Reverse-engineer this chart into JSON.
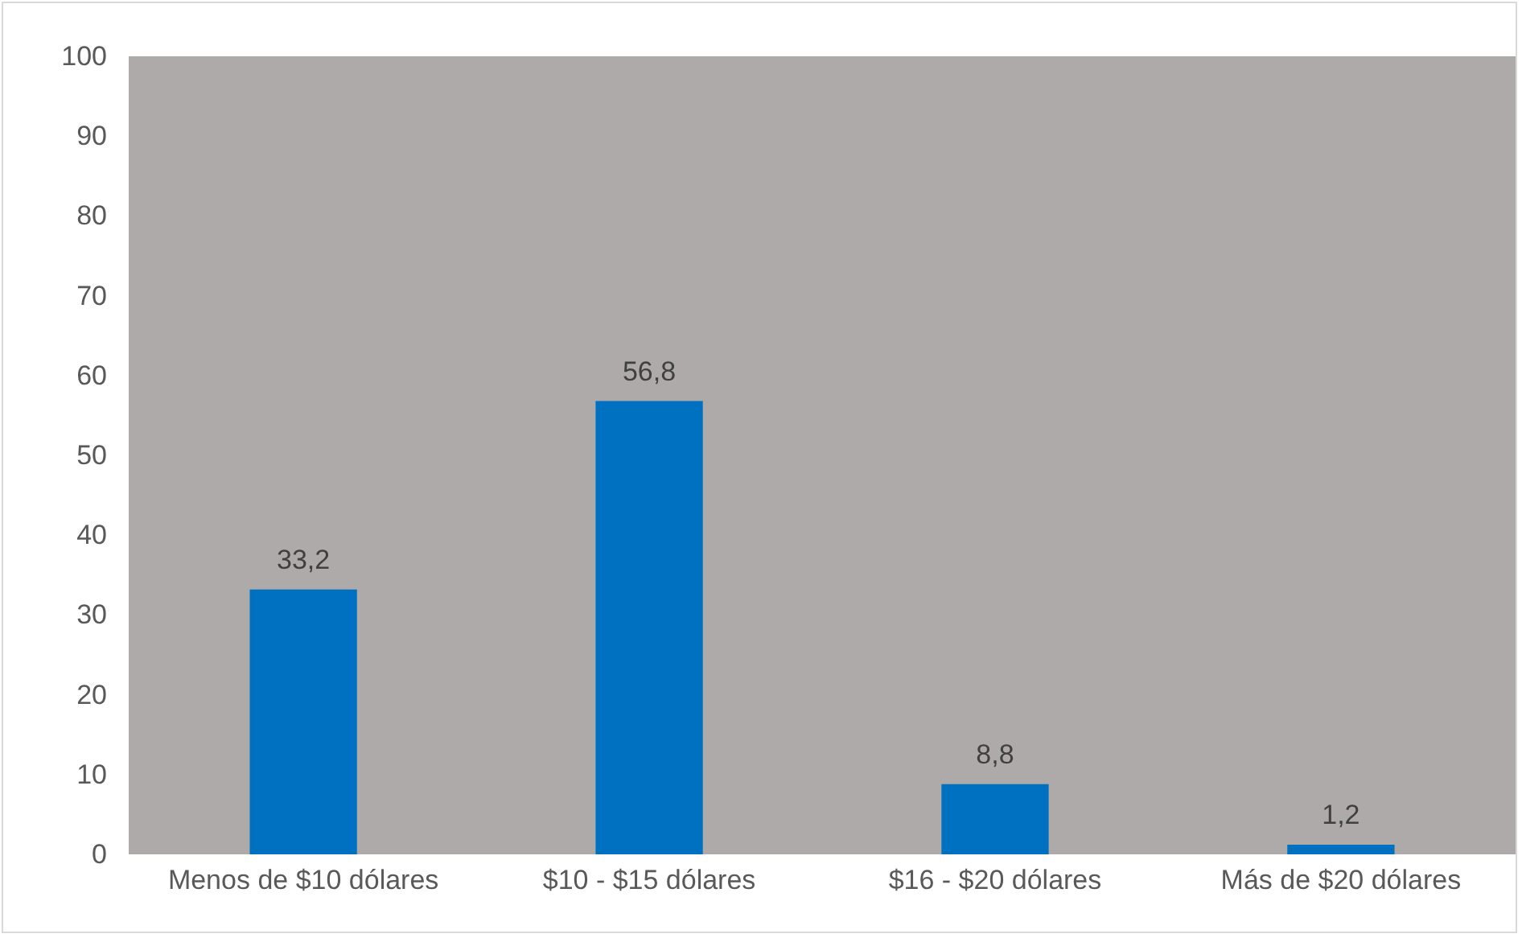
{
  "chart_data": {
    "type": "bar",
    "categories": [
      "Menos de $10 dólares",
      "$10 - $15 dólares",
      "$16 - $20 dólares",
      "Más de $20 dólares"
    ],
    "values": [
      33.2,
      56.8,
      8.8,
      1.2
    ],
    "value_labels": [
      "33,2",
      "56,8",
      "8,8",
      "1,2"
    ],
    "color": "#0070c0",
    "ylim": [
      0,
      100
    ],
    "yticks": [
      0,
      10,
      20,
      30,
      40,
      50,
      60,
      70,
      80,
      90,
      100
    ],
    "grid": false
  }
}
